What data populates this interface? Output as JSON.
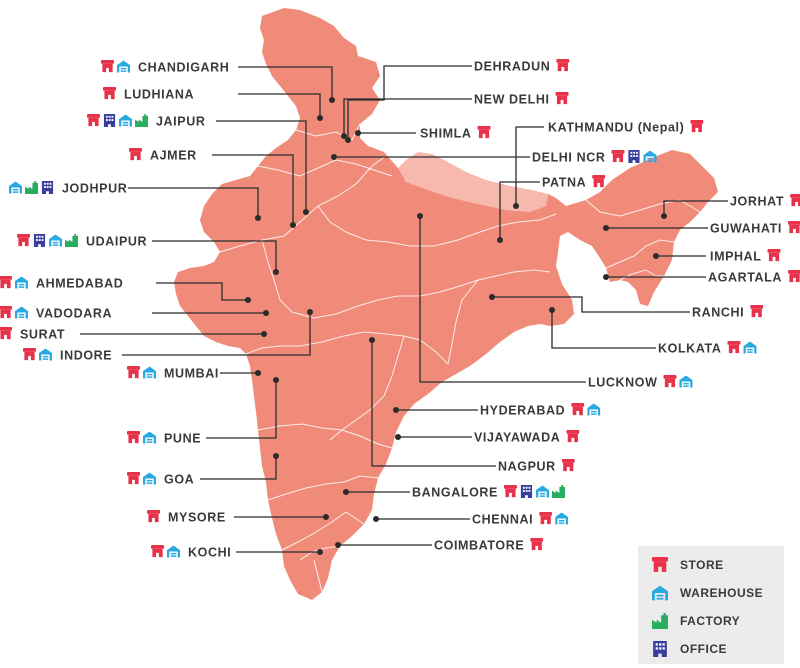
{
  "colors": {
    "land": "#f08a79",
    "nepal": "#f7b9ae",
    "store": "#e8324a",
    "warehouse": "#29a9e1",
    "factory": "#27ae60",
    "office": "#3a3f9e",
    "text": "#3a3a3a",
    "legend_bg": "#ececec"
  },
  "legend": {
    "items": [
      {
        "key": "store",
        "label": "STORE",
        "icon": "store-icon"
      },
      {
        "key": "warehouse",
        "label": "WAREHOUSE",
        "icon": "warehouse-icon"
      },
      {
        "key": "factory",
        "label": "FACTORY",
        "icon": "factory-icon"
      },
      {
        "key": "office",
        "label": "OFFICE",
        "icon": "office-icon"
      }
    ]
  },
  "cities": [
    {
      "name": "CHANDIGARH",
      "facilities": [
        "store",
        "warehouse"
      ]
    },
    {
      "name": "LUDHIANA",
      "facilities": [
        "store"
      ]
    },
    {
      "name": "JAIPUR",
      "facilities": [
        "store",
        "office",
        "warehouse",
        "factory"
      ]
    },
    {
      "name": "AJMER",
      "facilities": [
        "store"
      ]
    },
    {
      "name": "JODHPUR",
      "facilities": [
        "warehouse",
        "factory",
        "office"
      ]
    },
    {
      "name": "UDAIPUR",
      "facilities": [
        "store",
        "office",
        "warehouse",
        "factory"
      ]
    },
    {
      "name": "AHMEDABAD",
      "facilities": [
        "store",
        "warehouse"
      ]
    },
    {
      "name": "VADODARA",
      "facilities": [
        "store",
        "warehouse"
      ]
    },
    {
      "name": "SURAT",
      "facilities": [
        "store"
      ]
    },
    {
      "name": "INDORE",
      "facilities": [
        "store",
        "warehouse"
      ]
    },
    {
      "name": "MUMBAI",
      "facilities": [
        "store",
        "warehouse"
      ]
    },
    {
      "name": "PUNE",
      "facilities": [
        "store",
        "warehouse"
      ]
    },
    {
      "name": "GOA",
      "facilities": [
        "store",
        "warehouse"
      ]
    },
    {
      "name": "MYSORE",
      "facilities": [
        "store"
      ]
    },
    {
      "name": "KOCHI",
      "facilities": [
        "store",
        "warehouse"
      ]
    },
    {
      "name": "DEHRADUN",
      "facilities": [
        "store"
      ]
    },
    {
      "name": "NEW DELHI",
      "facilities": [
        "store"
      ]
    },
    {
      "name": "SHIMLA",
      "facilities": [
        "store"
      ]
    },
    {
      "name": "KATHMANDU (Nepal)",
      "facilities": [
        "store"
      ]
    },
    {
      "name": "DELHI NCR",
      "facilities": [
        "store",
        "office",
        "warehouse"
      ]
    },
    {
      "name": "PATNA",
      "facilities": [
        "store"
      ]
    },
    {
      "name": "JORHAT",
      "facilities": [
        "store"
      ]
    },
    {
      "name": "GUWAHATI",
      "facilities": [
        "store"
      ]
    },
    {
      "name": "IMPHAL",
      "facilities": [
        "store"
      ]
    },
    {
      "name": "AGARTALA",
      "facilities": [
        "store"
      ]
    },
    {
      "name": "RANCHI",
      "facilities": [
        "store"
      ]
    },
    {
      "name": "KOLKATA",
      "facilities": [
        "store",
        "warehouse"
      ]
    },
    {
      "name": "LUCKNOW",
      "facilities": [
        "store",
        "warehouse"
      ]
    },
    {
      "name": "HYDERABAD",
      "facilities": [
        "store",
        "warehouse"
      ]
    },
    {
      "name": "VIJAYAWADA",
      "facilities": [
        "store"
      ]
    },
    {
      "name": "NAGPUR",
      "facilities": [
        "store"
      ]
    },
    {
      "name": "BANGALORE",
      "facilities": [
        "store",
        "office",
        "warehouse",
        "factory"
      ]
    },
    {
      "name": "CHENNAI",
      "facilities": [
        "store",
        "warehouse"
      ]
    },
    {
      "name": "COIMBATORE",
      "facilities": [
        "store"
      ]
    }
  ]
}
